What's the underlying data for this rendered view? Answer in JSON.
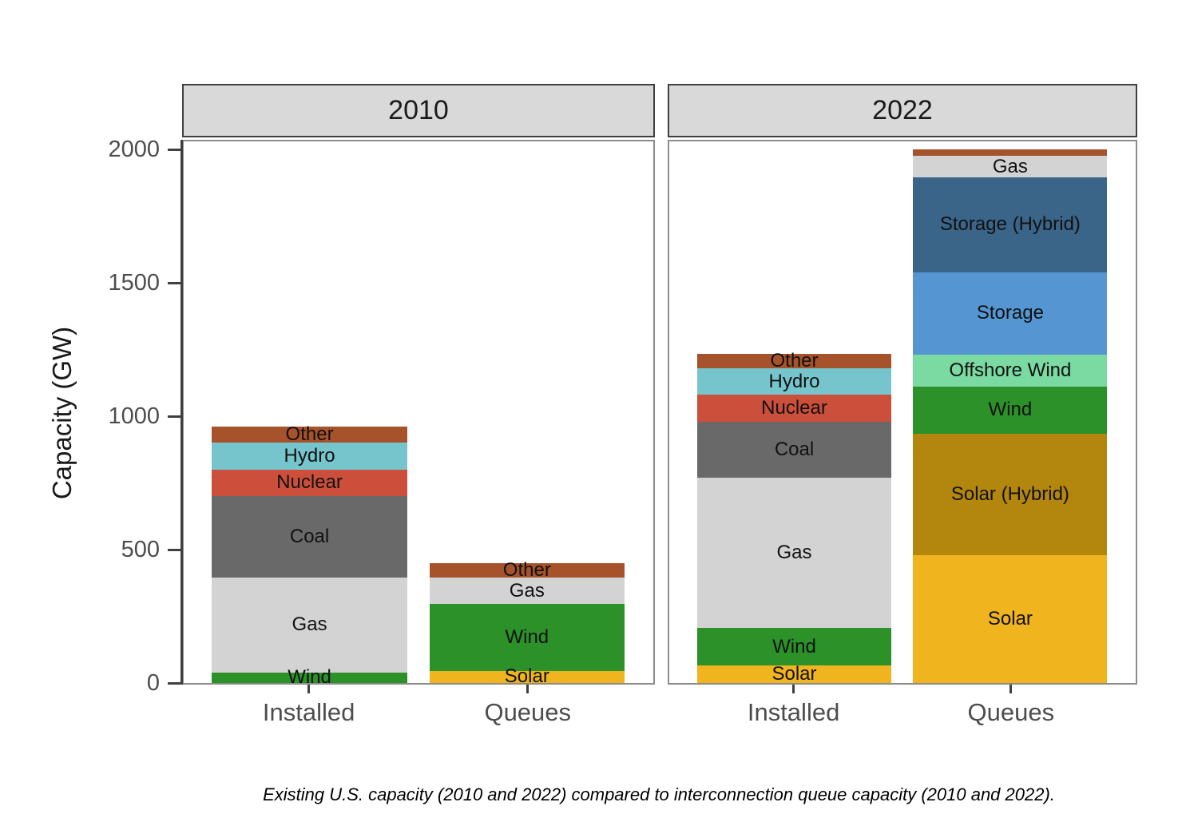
{
  "theme": {
    "background": "#ffffff",
    "strip_bg": "#D9D9D9",
    "strip_border": "#404040",
    "panel_border": "#8C8C8C",
    "axis_line": "#404040",
    "tick_text": "#4D4D4D",
    "segment_label_text": "#111111"
  },
  "colors": {
    "Solar": "#F0B41E",
    "Solar (Hybrid)": "#B3860D",
    "Wind": "#2B9128",
    "Offshore Wind": "#7BD9A2",
    "Gas": "#D3D3D3",
    "Coal": "#696969",
    "Nuclear": "#CC4F3B",
    "Hydro": "#76C5CD",
    "Other": "#A6522B",
    "Storage": "#5596D2",
    "Storage (Hybrid)": "#3A6488"
  },
  "chart_data": {
    "type": "bar",
    "stacked": true,
    "ylabel": "Capacity (GW)",
    "unit": "GW",
    "ylim": [
      0,
      2030
    ],
    "yticks": [
      0,
      500,
      1000,
      1500,
      2000
    ],
    "categories": [
      "Installed",
      "Queues"
    ],
    "facet_titles": [
      "2010",
      "2022"
    ],
    "caption": "Existing U.S. capacity (2010 and 2022) compared to interconnection queue capacity (2010 and 2022).",
    "facets": [
      {
        "title": "2010",
        "bars": [
          {
            "category": "Installed",
            "total": 960,
            "segments": [
              {
                "name": "Wind",
                "value": 40,
                "label_shown": true
              },
              {
                "name": "Gas",
                "value": 355,
                "label_shown": true
              },
              {
                "name": "Coal",
                "value": 305,
                "label_shown": true
              },
              {
                "name": "Nuclear",
                "value": 100,
                "label_shown": true
              },
              {
                "name": "Hydro",
                "value": 100,
                "label_shown": true
              },
              {
                "name": "Other",
                "value": 60,
                "label_shown": true
              }
            ]
          },
          {
            "category": "Queues",
            "total": 450,
            "segments": [
              {
                "name": "Solar",
                "value": 45,
                "label_shown": true
              },
              {
                "name": "Wind",
                "value": 250,
                "label_shown": true
              },
              {
                "name": "Gas",
                "value": 100,
                "label_shown": true
              },
              {
                "name": "Other",
                "value": 55,
                "label_shown": true
              }
            ]
          }
        ]
      },
      {
        "title": "2022",
        "bars": [
          {
            "category": "Installed",
            "total": 1235,
            "segments": [
              {
                "name": "Solar",
                "value": 65,
                "label_shown": true
              },
              {
                "name": "Wind",
                "value": 140,
                "label_shown": true
              },
              {
                "name": "Gas",
                "value": 565,
                "label_shown": true
              },
              {
                "name": "Coal",
                "value": 210,
                "label_shown": true
              },
              {
                "name": "Nuclear",
                "value": 100,
                "label_shown": true
              },
              {
                "name": "Hydro",
                "value": 100,
                "label_shown": true
              },
              {
                "name": "Other",
                "value": 55,
                "label_shown": true
              }
            ]
          },
          {
            "category": "Queues",
            "total": 2000,
            "segments": [
              {
                "name": "Solar",
                "value": 480,
                "label_shown": true
              },
              {
                "name": "Solar (Hybrid)",
                "value": 455,
                "label_shown": true
              },
              {
                "name": "Wind",
                "value": 175,
                "label_shown": true
              },
              {
                "name": "Offshore Wind",
                "value": 120,
                "label_shown": true
              },
              {
                "name": "Storage",
                "value": 310,
                "label_shown": true
              },
              {
                "name": "Storage (Hybrid)",
                "value": 355,
                "label_shown": true
              },
              {
                "name": "Gas",
                "value": 80,
                "label_shown": true
              },
              {
                "name": "Other",
                "value": 25,
                "label_shown": false
              }
            ]
          }
        ]
      }
    ]
  }
}
